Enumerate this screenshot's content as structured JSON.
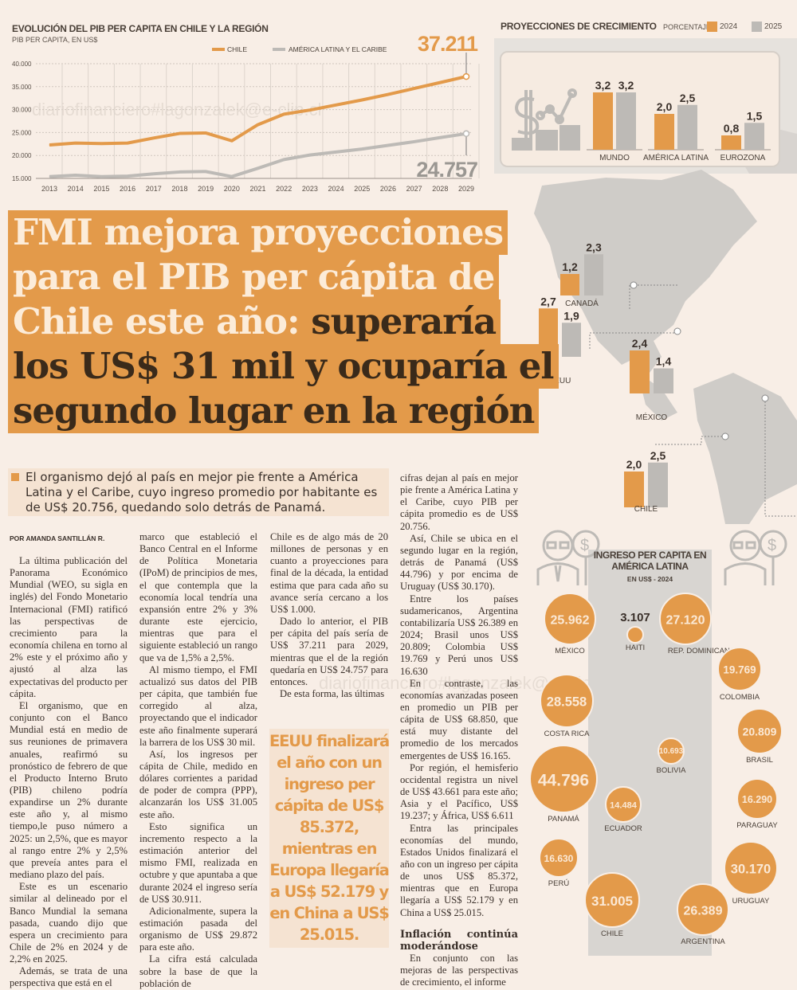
{
  "watermark": "diariofinanciero#lagonzalek@e-clip.cl",
  "colors": {
    "orange": "#e39a4a",
    "grey": "#bdbab6",
    "background": "#f8eee6"
  },
  "chart_data": [
    {
      "type": "line",
      "title": "EVOLUCIÓN DEL PIB PER CAPITA EN CHILE Y LA REGIÓN",
      "subtitle": "PIB PER CAPITA, EN US$",
      "x": [
        2013,
        2014,
        2015,
        2016,
        2017,
        2018,
        2019,
        2020,
        2021,
        2022,
        2023,
        2024,
        2025,
        2026,
        2027,
        2028,
        2029
      ],
      "ylim": [
        15000,
        40000
      ],
      "yticks": [
        "15.000",
        "20.000",
        "25.000",
        "30.000",
        "35.000",
        "40.000"
      ],
      "grid": true,
      "legend": "top",
      "series": [
        {
          "name": "CHILE",
          "color": "#e39a4a",
          "values": [
            22300,
            22700,
            22600,
            22700,
            23800,
            24800,
            24900,
            23200,
            26700,
            29000,
            29900,
            31005,
            32100,
            33300,
            34600,
            35900,
            37211
          ],
          "end_label": "37.211"
        },
        {
          "name": "AMÉRICA LATINA Y EL CARIBE",
          "color": "#bdbab6",
          "values": [
            15400,
            15700,
            15400,
            15500,
            16000,
            16400,
            16500,
            15400,
            17200,
            19100,
            20100,
            20756,
            21400,
            22200,
            23000,
            23900,
            24757
          ],
          "end_label": "24.757"
        }
      ]
    },
    {
      "type": "bar",
      "title": "PROYECCIONES DE CRECIMIENTO",
      "unit_label": "PORCENTAJE",
      "legend": [
        "2024",
        "2025"
      ],
      "categories": [
        "MUNDO",
        "AMÉRICA LATINA",
        "EUROZONA",
        "CANADÁ",
        "EEUU",
        "MÉXICO",
        "CHILE"
      ],
      "series": [
        {
          "name": "2024",
          "color": "#e39a4a",
          "values": [
            3.2,
            2.0,
            0.8,
            1.2,
            2.7,
            2.4,
            2.0
          ],
          "labels": [
            "3,2",
            "2,0",
            "0,8",
            "1,2",
            "2,7",
            "2,4",
            "2,0"
          ]
        },
        {
          "name": "2025",
          "color": "#bdbab6",
          "values": [
            3.2,
            2.5,
            1.5,
            2.3,
            1.9,
            1.4,
            2.5
          ],
          "labels": [
            "3,2",
            "2,5",
            "1,5",
            "2,3",
            "1,9",
            "1,4",
            "2,5"
          ]
        }
      ]
    },
    {
      "type": "bubble",
      "title": "INGRESO PER CAPITA EN AMÉRICA LATINA",
      "subtitle": "EN US$ - 2024",
      "items": [
        {
          "country": "MÉXICO",
          "value": 25962,
          "label": "25.962"
        },
        {
          "country": "HAITI",
          "value": 3107,
          "label": "3.107"
        },
        {
          "country": "REP. DOMINICANA",
          "value": 27120,
          "label": "27.120"
        },
        {
          "country": "COLOMBIA",
          "value": 19769,
          "label": "19.769"
        },
        {
          "country": "COSTA RICA",
          "value": 28558,
          "label": "28.558"
        },
        {
          "country": "BRASIL",
          "value": 20809,
          "label": "20.809"
        },
        {
          "country": "BOLIVIA",
          "value": 10693,
          "label": "10.693"
        },
        {
          "country": "PANAMÁ",
          "value": 44796,
          "label": "44.796"
        },
        {
          "country": "PARAGUAY",
          "value": 16290,
          "label": "16.290"
        },
        {
          "country": "ECUADOR",
          "value": 14484,
          "label": "14.484"
        },
        {
          "country": "PERÚ",
          "value": 16630,
          "label": "16.630"
        },
        {
          "country": "URUGUAY",
          "value": 30170,
          "label": "30.170"
        },
        {
          "country": "CHILE",
          "value": 31005,
          "label": "31.005"
        },
        {
          "country": "ARGENTINA",
          "value": 26389,
          "label": "26.389"
        }
      ]
    }
  ],
  "headline": {
    "light_1": "FMI mejora proyecciones",
    "light_2": "para el PIB per cápita de",
    "light_3": "Chile este año: ",
    "dark_3": "superaría",
    "dark_4": "los US$ 31 mil y ocuparía el",
    "dark_5": "segundo lugar en la región"
  },
  "lead": "El organismo dejó al país en mejor pie frente a América Latina y el Caribe, cuyo ingreso promedio por habitante es de US$ 20.756, quedando solo detrás de Panamá.",
  "byline": "POR AMANDA SANTILLÁN R.",
  "pull_quote": "EEUU finalizará el año con un ingreso per cápita de US$ 85.372, mientras en Europa llegaría a US$ 52.179 y en China a US$ 25.015.",
  "article": {
    "columns": [
      {
        "paragraphs": [
          "La última publicación del Panorama Económico Mundial (WEO, su sigla en inglés) del Fondo Monetario Internacional (FMI) ratificó las perspectivas de crecimiento para la economía chilena en torno al 2% este y el próximo año y ajustó al alza las expectativas del producto per cápita.",
          "El organismo, que en conjunto con el Banco Mundial está en medio de sus reuniones de primavera anuales, reafirmó su pronóstico de febrero de que el Producto Interno Bruto (PIB) chileno podría expandirse un 2% durante este año y, al mismo tiempo,le puso número a 2025: un 2,5%, que es mayor al rango entre 2% y 2,5% que preveía antes para el mediano plazo del país.",
          "Este es un escenario similar al delineado por el Banco Mundial la semana pasada, cuando dijo que espera un crecimiento para Chile de 2% en 2024 y de 2,2% en 2025.",
          "Además, se trata de una perspectiva que está en el"
        ]
      },
      {
        "paragraphs": [
          "marco que estableció el Banco Central en el Informe de Política Monetaria (IPoM) de principios de mes, el que contempla que la economía local tendría una expansión entre 2% y 3% durante este ejercicio, mientras que para el siguiente estableció un rango que va de 1,5% a 2,5%.",
          "Al mismo tiempo, el FMI actualizó sus datos del PIB per cápita, que también fue corregido al alza, proyectando que el indicador este año finalmente superará la barrera de los US$ 30 mil.",
          "Así, los ingresos per cápita de Chile, medido en dólares corrientes a paridad de poder de compra (PPP), alcanzarán los US$ 31.005 este año.",
          "Esto significa un incremento respecto a la estimación anterior del mismo FMI, realizada en octubre y que apuntaba a que durante 2024 el ingreso sería de US$ 30.911.",
          "Adicionalmente, supera la estimación pasada del organismo de US$ 29.872 para este año.",
          "La cifra está calculada sobre la base de que la población de"
        ]
      },
      {
        "paragraphs": [
          "Chile es de algo más de 20 millones de personas y en cuanto a proyecciones para final de la década, la entidad estima que para cada año su avance sería cercano a los US$ 1.000.",
          "Dado lo anterior, el PIB per cápita del país sería de US$ 37.211 para 2029, mientras que el de la región quedaría en US$ 24.757 para entonces.",
          "De esta forma, las últimas"
        ]
      },
      {
        "paragraphs": [
          "cifras dejan al país en mejor pie frente a América Latina y el Caribe, cuyo PIB per cápita promedio es de US$ 20.756.",
          "Así, Chile se ubica en el segundo lugar en la región, detrás de Panamá (US$ 44.796) y por encima de Uruguay (US$ 30.170).",
          "Entre los países sudamericanos, Argentina contabilizaría US$ 26.389 en 2024; Brasil unos US$ 20.809; Colombia US$ 19.769 y Perú unos US$ 16.630",
          "En contraste, las economías avanzadas poseen en promedio un PIB per cápita de US$ 68.850, que está muy distante del promedio de los mercados emergentes de US$ 16.165.",
          "Por región, el hemisferio occidental registra un nivel de US$ 43.661 para este año; Asia y el Pacífico, US$ 19.237; y África, US$ 6.611",
          "Entra las principales economías del mundo, Estados Unidos finalizará el año con un ingreso per cápita de unos US$ 85.372, mientras que en Europa llegaría a US$ 52.179 y en China a US$ 25.015."
        ],
        "subhead": "Inflación continúa moderándose",
        "after": [
          "En conjunto con las mejoras de las perspectivas de crecimiento, el informe"
        ]
      }
    ]
  }
}
